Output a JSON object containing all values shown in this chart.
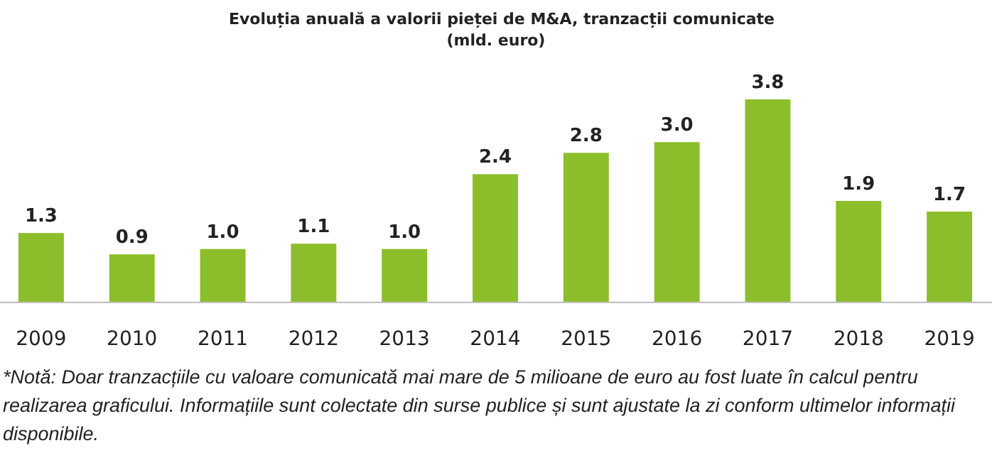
{
  "chart_data": {
    "type": "bar",
    "title": "Evoluția anuală a valorii pieței de M&A, tranzacții comunicate",
    "subtitle": "(mld. euro)",
    "categories": [
      "2009",
      "2010",
      "2011",
      "2012",
      "2013",
      "2014",
      "2015",
      "2016",
      "2017",
      "2018",
      "2019"
    ],
    "values": [
      1.3,
      0.9,
      1.0,
      1.1,
      1.0,
      2.4,
      2.8,
      3.0,
      3.8,
      1.9,
      1.7
    ],
    "value_labels": [
      "1.3",
      "0.9",
      "1.0",
      "1.1",
      "1.0",
      "2.4",
      "2.8",
      "3.0",
      "3.8",
      "1.9",
      "1.7"
    ],
    "color": "#8cbd2b",
    "annotations": [
      "*Notă: Doar tranzacțiile cu valoare comunicată mai mare de 5 milioane de euro au fost luate în calcul pentru realizarea graficului. Informațiile sunt colectate din surse publice și sunt ajustate la zi conform ultimelor informații disponibile."
    ]
  }
}
